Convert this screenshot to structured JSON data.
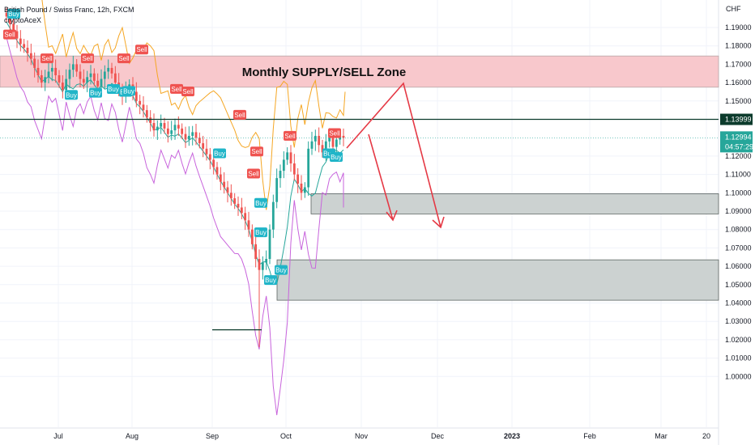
{
  "header": {
    "title": "British Pound / Swiss Franc, 12h, FXCM",
    "indicator": "cryptoAceX",
    "currency": "CHF"
  },
  "price_axis": {
    "ticks": [
      "1.19000",
      "1.18000",
      "1.17000",
      "1.16000",
      "1.15000",
      "1.14000",
      "1.12000",
      "1.11000",
      "1.10000",
      "1.09000",
      "1.08000",
      "1.07000",
      "1.06000",
      "1.05000",
      "1.04000",
      "1.03000",
      "1.02000",
      "1.01000",
      "1.00000"
    ],
    "level_line_label": "1.13999",
    "last_price_label": "1.12994",
    "countdown_label": "04:57:29"
  },
  "time_axis": {
    "labels": [
      "Jul",
      "Aug",
      "Sep",
      "Oct",
      "Nov",
      "Dec",
      "2023",
      "Feb",
      "Mar",
      "20"
    ]
  },
  "annotations": {
    "zone_label": "Monthly SUPPLY/SELL Zone"
  },
  "signal_text": {
    "buy": "Buy",
    "sell": "Sell"
  },
  "colors": {
    "up_candle": "#26a69a",
    "down_candle": "#ef5350",
    "supply_zone": "#f8c8cc",
    "demand_zone": "#ccd2d1",
    "arrows": "#e53945",
    "upper_band": "#f5a623",
    "lower_band": "#c864dc",
    "mid_line": "#26a69a",
    "buy_tag": "#20b5c8",
    "sell_tag": "#ef5350"
  },
  "chart_data": {
    "type": "candlestick",
    "symbol": "GBPCHF",
    "timeframe": "12h",
    "price_range": [
      0.995,
      1.198
    ],
    "time_labels": [
      "Jul",
      "Aug",
      "Sep",
      "Oct",
      "Nov",
      "Dec",
      "2023",
      "Feb",
      "Mar",
      "20"
    ],
    "close_series": [
      1.196,
      1.192,
      1.188,
      1.184,
      1.181,
      1.179,
      1.176,
      1.173,
      1.168,
      1.164,
      1.16,
      1.163,
      1.166,
      1.168,
      1.164,
      1.16,
      1.156,
      1.162,
      1.167,
      1.17,
      1.166,
      1.162,
      1.16,
      1.163,
      1.165,
      1.161,
      1.158,
      1.162,
      1.166,
      1.168,
      1.165,
      1.16,
      1.156,
      1.153,
      1.156,
      1.159,
      1.155,
      1.15,
      1.148,
      1.145,
      1.141,
      1.138,
      1.134,
      1.136,
      1.138,
      1.135,
      1.132,
      1.134,
      1.137,
      1.135,
      1.132,
      1.129,
      1.131,
      1.133,
      1.13,
      1.127,
      1.124,
      1.121,
      1.118,
      1.114,
      1.11,
      1.106,
      1.103,
      1.1,
      1.097,
      1.094,
      1.092,
      1.089,
      1.085,
      1.08,
      1.072,
      1.064,
      1.058,
      1.062,
      1.064,
      1.08,
      1.095,
      1.108,
      1.112,
      1.118,
      1.122,
      1.116,
      1.11,
      1.105,
      1.1,
      1.103,
      1.124,
      1.128,
      1.131,
      1.126,
      1.122,
      1.128,
      1.13,
      1.125,
      1.129,
      1.131,
      1.12994
    ],
    "levels": {
      "horizontal_line": 1.13999,
      "last_price": 1.12994,
      "supply_zone": [
        1.1575,
        1.1745
      ],
      "demand_zone_1": [
        1.0885,
        1.0995
      ],
      "demand_zone_2": [
        1.0415,
        1.0635
      ]
    },
    "signals": [
      {
        "type": "sell",
        "price": 1.1862
      },
      {
        "type": "buy",
        "price": 1.1975
      },
      {
        "type": "sell",
        "price": 1.1732
      },
      {
        "type": "buy",
        "price": 1.1533
      },
      {
        "type": "buy",
        "price": 1.1545
      },
      {
        "type": "buy",
        "price": 1.1565
      },
      {
        "type": "sell",
        "price": 1.1732
      },
      {
        "type": "sell",
        "price": 1.1732
      },
      {
        "type": "sell",
        "price": 1.178
      },
      {
        "type": "buy",
        "price": 1.155
      },
      {
        "type": "buy",
        "price": 1.1555
      },
      {
        "type": "sell",
        "price": 1.1566
      },
      {
        "type": "sell",
        "price": 1.1552
      },
      {
        "type": "sell",
        "price": 1.1425
      },
      {
        "type": "buy",
        "price": 1.1215
      },
      {
        "type": "sell",
        "price": 1.1225
      },
      {
        "type": "sell",
        "price": 1.1105
      },
      {
        "type": "buy",
        "price": 1.0945
      },
      {
        "type": "buy",
        "price": 1.0785
      },
      {
        "type": "buy",
        "price": 1.0525
      },
      {
        "type": "buy",
        "price": 1.058
      },
      {
        "type": "sell",
        "price": 1.131
      },
      {
        "type": "sell",
        "price": 1.1325
      },
      {
        "type": "buy",
        "price": 1.1215
      },
      {
        "type": "buy",
        "price": 1.1195
      }
    ]
  }
}
